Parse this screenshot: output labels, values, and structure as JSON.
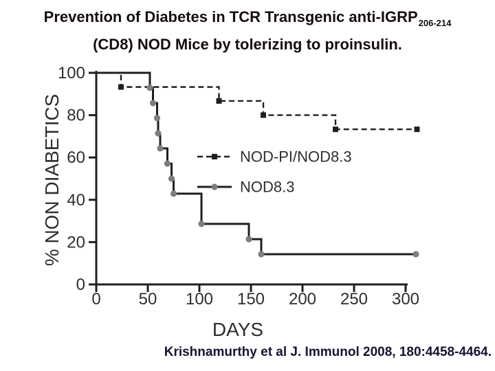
{
  "slide": {
    "title": {
      "line1": "Prevention of Diabetes in TCR Transgenic anti-IGRP",
      "subscript": "206-214",
      "line2": "(CD8) NOD Mice by tolerizing to proinsulin."
    },
    "citation": "Krishnamurthy et al J. Immunol 2008, 180:4458-4464.",
    "colors": {
      "background": "#ffffff",
      "title": "#160d0d",
      "citation": "#141432"
    }
  },
  "chart_data": {
    "type": "line",
    "chart_style": "kaplan-meier-survival-step",
    "xlabel": "DAYS",
    "ylabel": "% NON DIABETICS",
    "x_ticks": [
      0,
      50,
      100,
      150,
      200,
      250,
      300
    ],
    "y_ticks": [
      0,
      20,
      40,
      60,
      80,
      100
    ],
    "xlim": [
      0,
      311
    ],
    "ylim": [
      0,
      100
    ],
    "axis_end_day": 302,
    "grid": false,
    "legend_position": "center-right",
    "colors": {
      "axis": "#1f1f1f",
      "text": "#2e2e2e"
    },
    "series": [
      {
        "name": "NOD-PI/NOD8.3",
        "style": "dashed",
        "marker": "square",
        "color": "#1f1f1f",
        "marker_color": "#1f1f1f",
        "points": [
          [
            0,
            100
          ],
          [
            24,
            93.3
          ],
          [
            119,
            86.7
          ],
          [
            162,
            80
          ],
          [
            232,
            73.3
          ],
          [
            311,
            73.3
          ]
        ]
      },
      {
        "name": "NOD8.3",
        "style": "solid",
        "marker": "circle",
        "color": "#1f1f1f",
        "marker_color": "#7e7e7e",
        "points": [
          [
            0,
            100
          ],
          [
            52,
            92.9
          ],
          [
            55,
            85.7
          ],
          [
            59,
            78.6
          ],
          [
            60,
            71.4
          ],
          [
            62,
            64.3
          ],
          [
            69,
            57.1
          ],
          [
            73,
            50
          ],
          [
            75,
            42.9
          ],
          [
            102,
            28.6
          ],
          [
            148,
            21.4
          ],
          [
            160,
            14.3
          ],
          [
            310,
            14.3
          ]
        ]
      }
    ],
    "legend": {
      "items": [
        {
          "label": "NOD-PI/NOD8.3",
          "series": 0
        },
        {
          "label": "NOD8.3",
          "series": 1
        }
      ]
    }
  }
}
